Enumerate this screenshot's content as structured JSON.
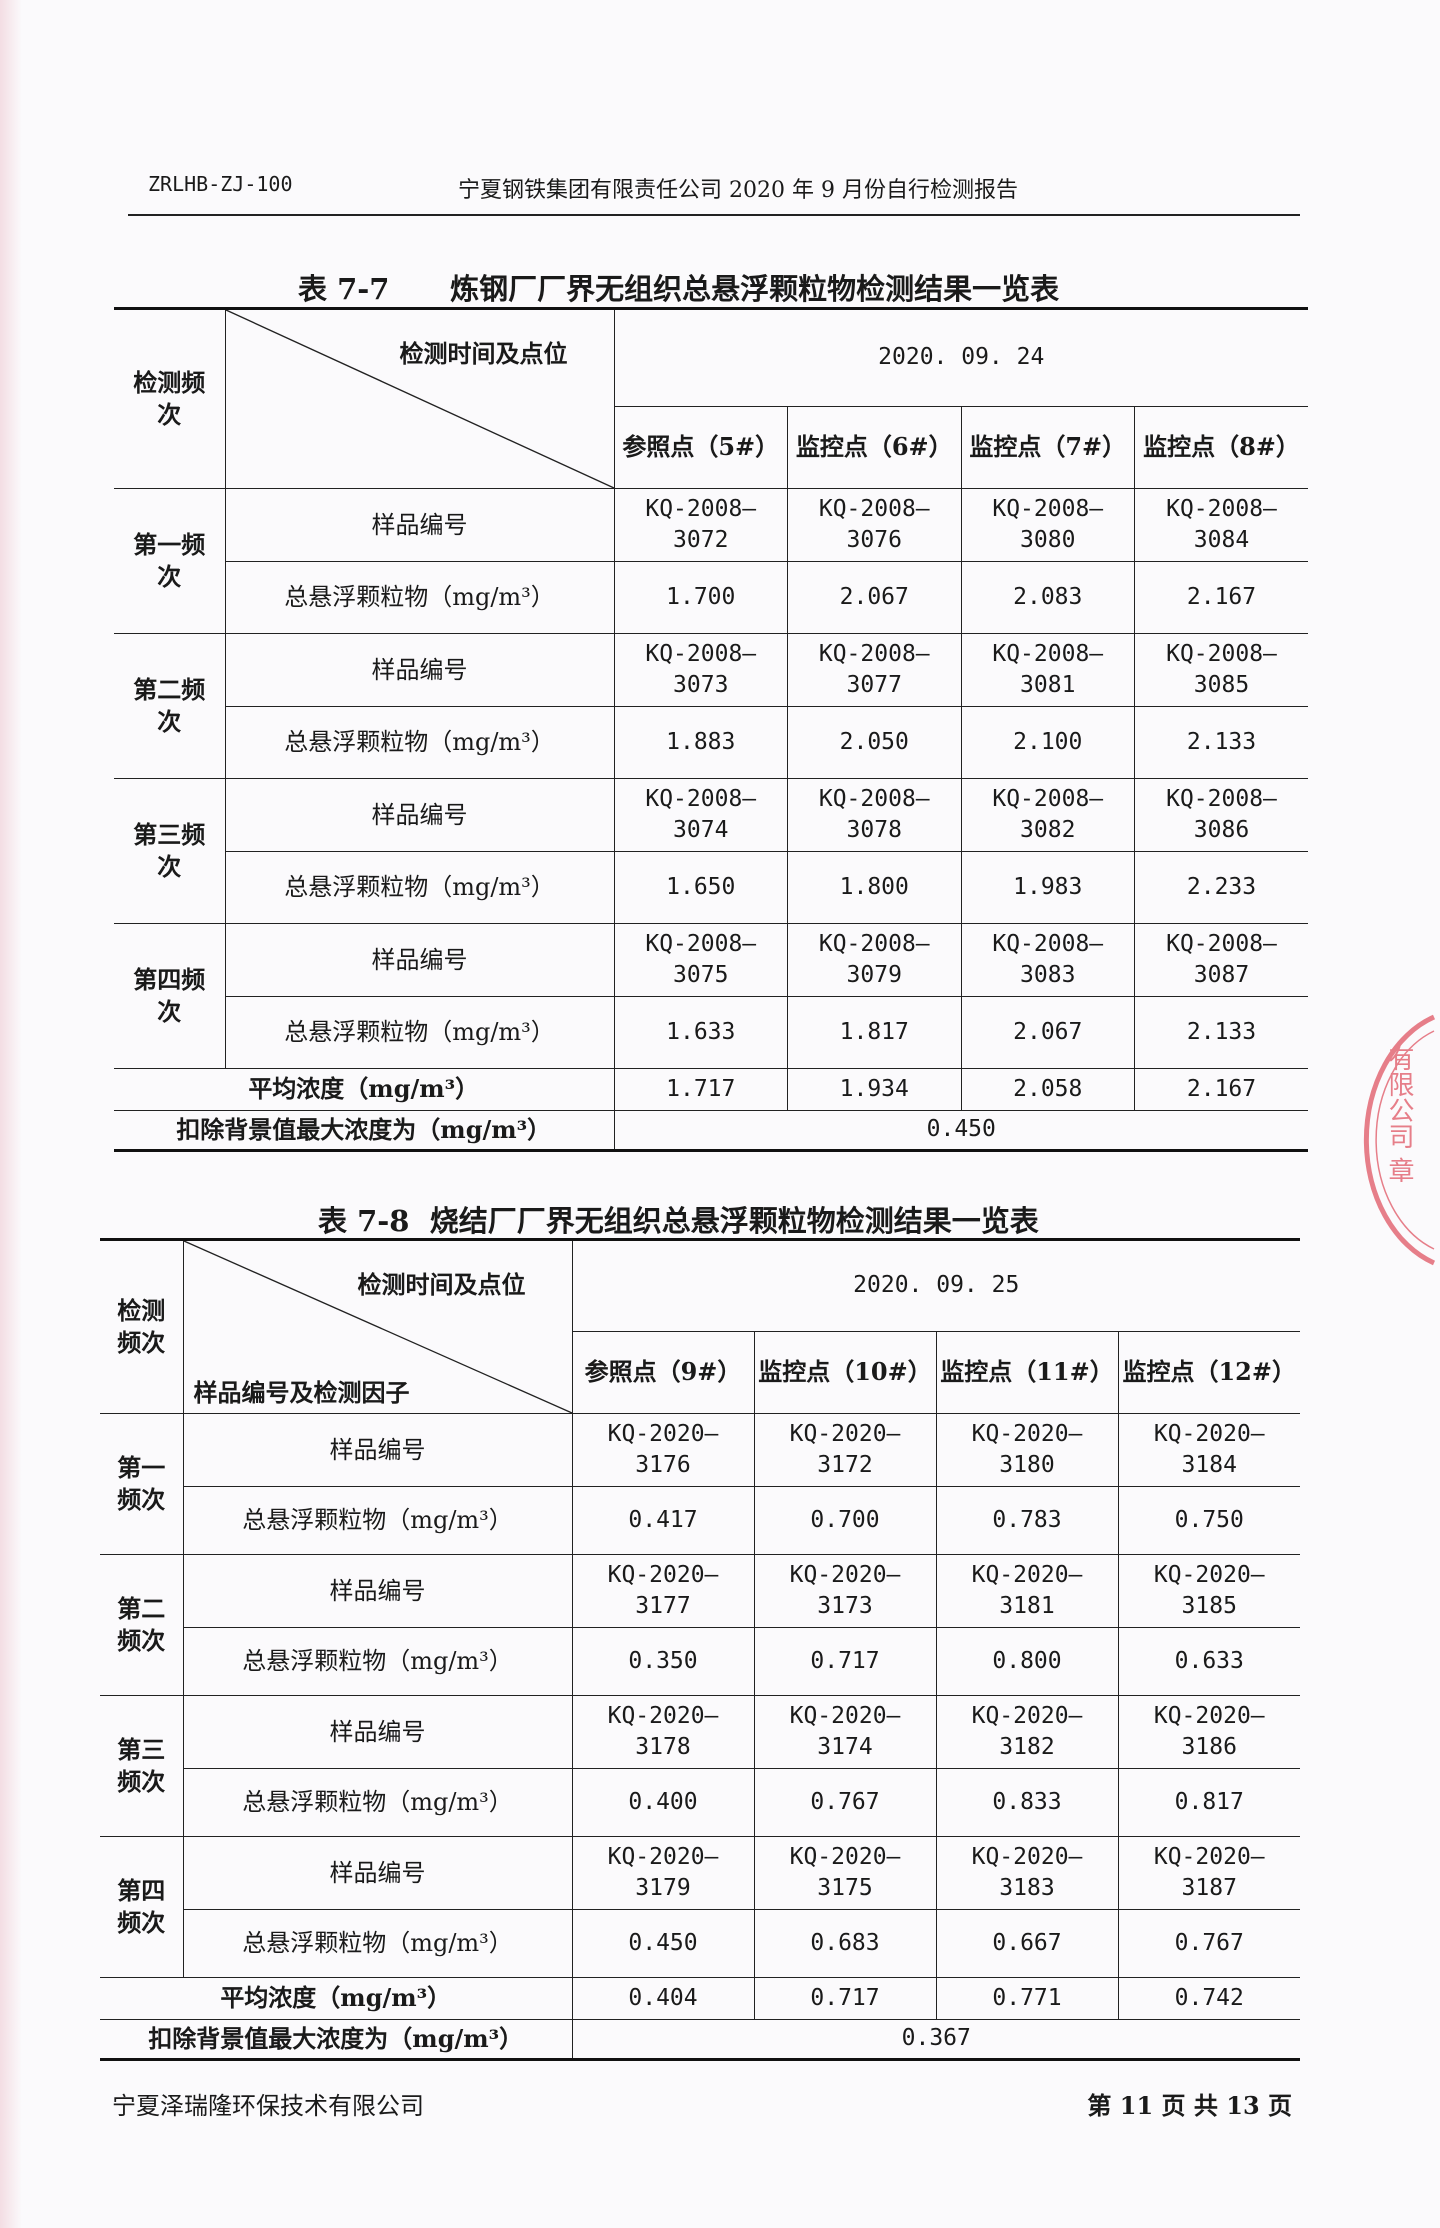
{
  "header": {
    "code": "ZRLHB-ZJ-100",
    "title": "宁夏钢铁集团有限责任公司 2020 年 9 月份自行检测报告"
  },
  "tables": [
    {
      "label": "表 7-7",
      "title": "炼钢厂厂界无组织总悬浮颗粒物检测结果一览表",
      "freq_header": "检测频次",
      "diag_top": "检测时间及点位",
      "diag_bottom": "",
      "date": "2020. 09. 24",
      "points": [
        "参照点（5#）",
        "监控点（6#）",
        "监控点（7#）",
        "监控点（8#）"
      ],
      "sample_label": "样品编号",
      "value_label": "总悬浮颗粒物（mg/m³）",
      "rows": [
        {
          "freq": "第一频次",
          "samples": [
            "KQ-2008—3072",
            "KQ-2008—3076",
            "KQ-2008—3080",
            "KQ-2008—3084"
          ],
          "values": [
            "1.700",
            "2.067",
            "2.083",
            "2.167"
          ]
        },
        {
          "freq": "第二频次",
          "samples": [
            "KQ-2008—3073",
            "KQ-2008—3077",
            "KQ-2008—3081",
            "KQ-2008—3085"
          ],
          "values": [
            "1.883",
            "2.050",
            "2.100",
            "2.133"
          ]
        },
        {
          "freq": "第三频次",
          "samples": [
            "KQ-2008—3074",
            "KQ-2008—3078",
            "KQ-2008—3082",
            "KQ-2008—3086"
          ],
          "values": [
            "1.650",
            "1.800",
            "1.983",
            "2.233"
          ]
        },
        {
          "freq": "第四频次",
          "samples": [
            "KQ-2008—3075",
            "KQ-2008—3079",
            "KQ-2008—3083",
            "KQ-2008—3087"
          ],
          "values": [
            "1.633",
            "1.817",
            "2.067",
            "2.133"
          ]
        }
      ],
      "avg_label": "平均浓度（mg/m³）",
      "avg": [
        "1.717",
        "1.934",
        "2.058",
        "2.167"
      ],
      "max_label": "扣除背景值最大浓度为（mg/m³）",
      "max": "0.450"
    },
    {
      "label": "表 7-8",
      "title": "烧结厂厂界无组织总悬浮颗粒物检测结果一览表",
      "freq_header": "检测频次",
      "diag_top": "检测时间及点位",
      "diag_bottom": "样品编号及检测因子",
      "date": "2020. 09. 25",
      "points": [
        "参照点（9#）",
        "监控点（10#）",
        "监控点（11#）",
        "监控点（12#）"
      ],
      "sample_label": "样品编号",
      "value_label": "总悬浮颗粒物（mg/m³）",
      "rows": [
        {
          "freq": "第一频次",
          "samples": [
            "KQ-2020—3176",
            "KQ-2020—3172",
            "KQ-2020—3180",
            "KQ-2020—3184"
          ],
          "values": [
            "0.417",
            "0.700",
            "0.783",
            "0.750"
          ]
        },
        {
          "freq": "第二频次",
          "samples": [
            "KQ-2020—3177",
            "KQ-2020—3173",
            "KQ-2020—3181",
            "KQ-2020—3185"
          ],
          "values": [
            "0.350",
            "0.717",
            "0.800",
            "0.633"
          ]
        },
        {
          "freq": "第三频次",
          "samples": [
            "KQ-2020—3178",
            "KQ-2020—3174",
            "KQ-2020—3182",
            "KQ-2020—3186"
          ],
          "values": [
            "0.400",
            "0.767",
            "0.833",
            "0.817"
          ]
        },
        {
          "freq": "第四频次",
          "samples": [
            "KQ-2020—3179",
            "KQ-2020—3175",
            "KQ-2020—3183",
            "KQ-2020—3187"
          ],
          "values": [
            "0.450",
            "0.683",
            "0.667",
            "0.767"
          ]
        }
      ],
      "avg_label": "平均浓度（mg/m³）",
      "avg": [
        "0.404",
        "0.717",
        "0.771",
        "0.742"
      ],
      "max_label": "扣除背景值最大浓度为（mg/m³）",
      "max": "0.367"
    }
  ],
  "footer": {
    "company": "宁夏泽瑞隆环保技术有限公司",
    "page": "第 11 页  共 13 页"
  },
  "stamp": {
    "text": "有限公司 章",
    "color": "#e05563"
  }
}
